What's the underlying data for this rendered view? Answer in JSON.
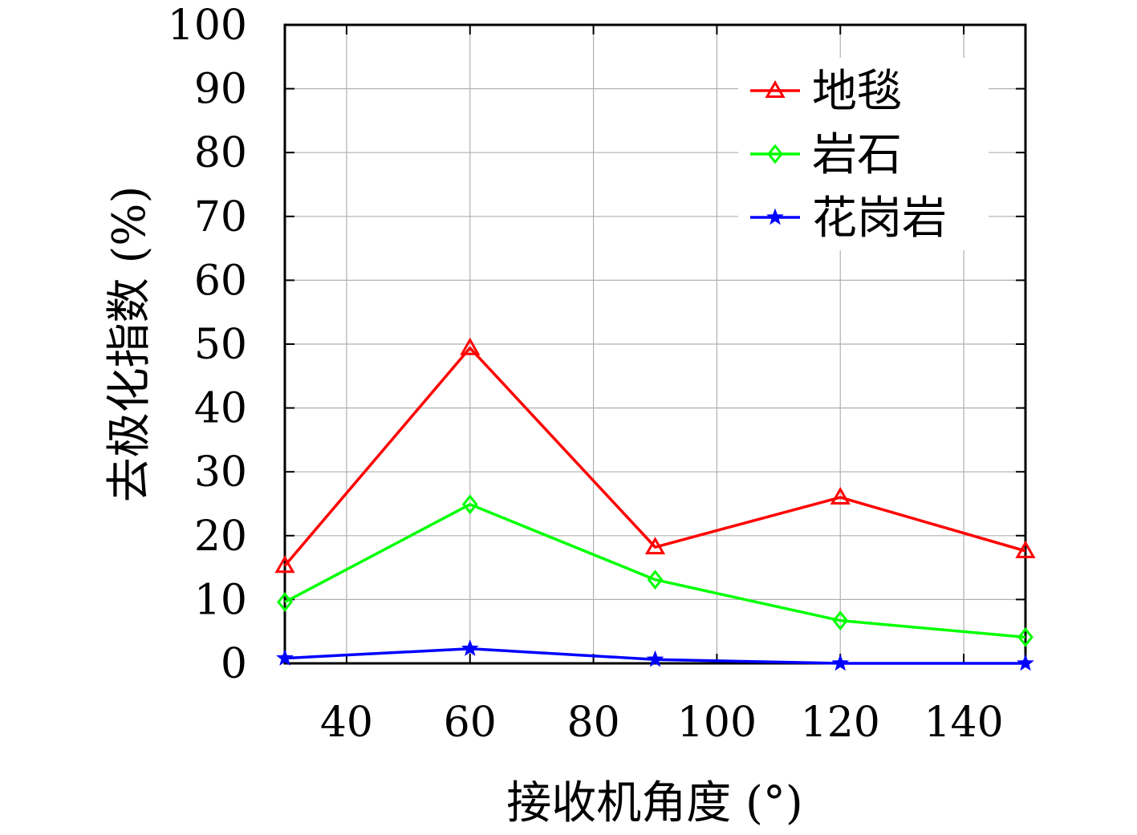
{
  "chart_data": {
    "type": "line",
    "xlabel": "接收机角度 (°)",
    "ylabel": "去极化指数 (%)",
    "xlim": [
      30,
      150
    ],
    "ylim": [
      0,
      100
    ],
    "xticks": [
      40,
      60,
      80,
      100,
      120,
      140
    ],
    "yticks": [
      0,
      10,
      20,
      30,
      40,
      50,
      60,
      70,
      80,
      90,
      100
    ],
    "grid": true,
    "legend_position": "top-right",
    "x": [
      30,
      60,
      90,
      120,
      150
    ],
    "series": [
      {
        "name": "地毯",
        "color": "#ff0000",
        "marker": "triangle",
        "values": [
          15.3,
          49.4,
          18.2,
          26.0,
          17.6
        ]
      },
      {
        "name": "岩石",
        "color": "#00ff00",
        "marker": "diamond",
        "values": [
          9.6,
          24.9,
          13.1,
          6.7,
          4.1
        ]
      },
      {
        "name": "花岗岩",
        "color": "#0000ff",
        "marker": "star",
        "values": [
          0.8,
          2.3,
          0.6,
          0.0,
          0.0
        ]
      }
    ]
  }
}
